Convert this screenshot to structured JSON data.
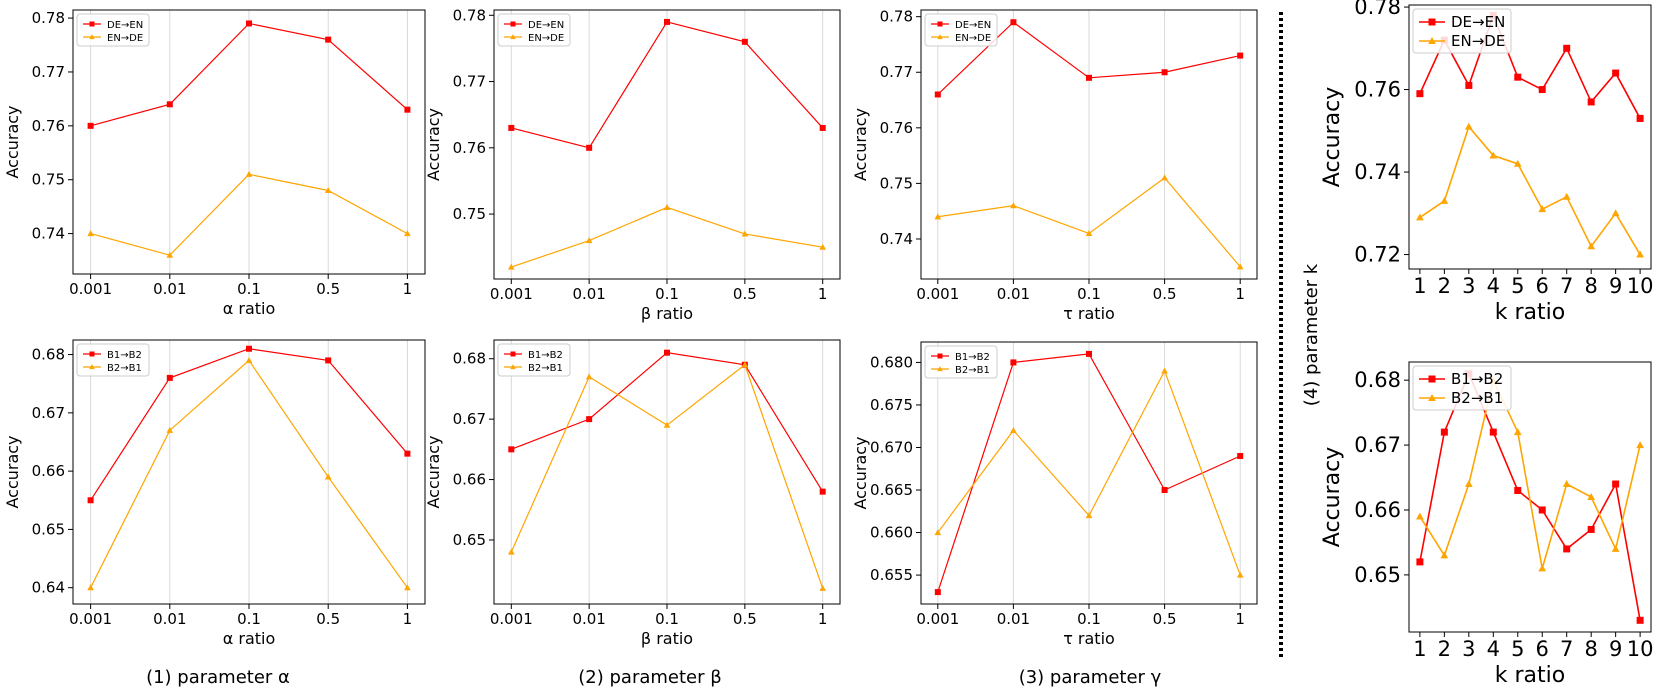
{
  "captions": [
    "(1) parameter α",
    "(2) parameter β",
    "(3) parameter γ",
    "(4) parameter k"
  ],
  "colors": {
    "red": "#ff0000",
    "orange": "#ffa500"
  },
  "chart_data": [
    {
      "id": "alpha-top",
      "type": "line",
      "categories": [
        "0.001",
        "0.01",
        "0.1",
        "0.5",
        "1"
      ],
      "xlabel": "α ratio",
      "ylabel": "Accuracy",
      "ylim": [
        0.7325,
        0.7815
      ],
      "yticks": [
        0.74,
        0.75,
        0.76,
        0.77,
        0.78
      ],
      "ytick_labels": [
        "0.74",
        "0.75",
        "0.76",
        "0.77",
        "0.78"
      ],
      "grid": "x",
      "legend": "top-left",
      "series": [
        {
          "name": "DE→EN",
          "color": "red",
          "marker": "square",
          "values": [
            0.76,
            0.764,
            0.779,
            0.776,
            0.763
          ]
        },
        {
          "name": "EN→DE",
          "color": "orange",
          "marker": "triangle",
          "values": [
            0.74,
            0.736,
            0.751,
            0.748,
            0.74
          ]
        }
      ]
    },
    {
      "id": "beta-top",
      "type": "line",
      "categories": [
        "0.001",
        "0.01",
        "0.1",
        "0.5",
        "1"
      ],
      "xlabel": "β ratio",
      "ylabel": "Accuracy",
      "ylim": [
        0.7402,
        0.7808
      ],
      "yticks": [
        0.75,
        0.76,
        0.77,
        0.78
      ],
      "ytick_labels": [
        "0.75",
        "0.76",
        "0.77",
        "0.78"
      ],
      "grid": "x",
      "legend": "top-left",
      "series": [
        {
          "name": "DE→EN",
          "color": "red",
          "marker": "square",
          "values": [
            0.763,
            0.76,
            0.779,
            0.776,
            0.763
          ]
        },
        {
          "name": "EN→DE",
          "color": "orange",
          "marker": "triangle",
          "values": [
            0.742,
            0.746,
            0.751,
            0.747,
            0.745
          ]
        }
      ]
    },
    {
      "id": "tau-top",
      "type": "line",
      "categories": [
        "0.001",
        "0.01",
        "0.1",
        "0.5",
        "1"
      ],
      "xlabel": "τ ratio",
      "ylabel": "Accuracy",
      "ylim": [
        0.7328,
        0.7812
      ],
      "yticks": [
        0.74,
        0.75,
        0.76,
        0.77,
        0.78
      ],
      "ytick_labels": [
        "0.74",
        "0.75",
        "0.76",
        "0.77",
        "0.78"
      ],
      "grid": "x",
      "legend": "top-left",
      "series": [
        {
          "name": "DE→EN",
          "color": "red",
          "marker": "square",
          "values": [
            0.766,
            0.779,
            0.769,
            0.77,
            0.773
          ]
        },
        {
          "name": "EN→DE",
          "color": "orange",
          "marker": "triangle",
          "values": [
            0.744,
            0.746,
            0.741,
            0.751,
            0.735
          ]
        }
      ]
    },
    {
      "id": "k-top",
      "type": "line",
      "categories": [
        "1",
        "2",
        "3",
        "4",
        "5",
        "6",
        "7",
        "8",
        "9",
        "10"
      ],
      "xlabel": "k ratio",
      "ylabel": "Accuracy",
      "ylim": [
        0.7165,
        0.7805
      ],
      "yticks": [
        0.72,
        0.74,
        0.76,
        0.78
      ],
      "ytick_labels": [
        "0.72",
        "0.74",
        "0.76",
        "0.78"
      ],
      "grid": "none",
      "legend": "top-left",
      "big": true,
      "series": [
        {
          "name": "DE→EN",
          "color": "red",
          "marker": "square",
          "values": [
            0.759,
            0.772,
            0.761,
            0.778,
            0.763,
            0.76,
            0.77,
            0.757,
            0.764,
            0.753
          ]
        },
        {
          "name": "EN→DE",
          "color": "orange",
          "marker": "triangle",
          "values": [
            0.729,
            0.733,
            0.751,
            0.744,
            0.742,
            0.731,
            0.734,
            0.722,
            0.73,
            0.72
          ]
        }
      ]
    },
    {
      "id": "alpha-bottom",
      "type": "line",
      "categories": [
        "0.001",
        "0.01",
        "0.1",
        "0.5",
        "1"
      ],
      "xlabel": "α ratio",
      "ylabel": "Accuracy",
      "ylim": [
        0.6372,
        0.6825
      ],
      "yticks": [
        0.64,
        0.65,
        0.66,
        0.67,
        0.68
      ],
      "ytick_labels": [
        "0.64",
        "0.65",
        "0.66",
        "0.67",
        "0.68"
      ],
      "grid": "x",
      "legend": "top-left",
      "series": [
        {
          "name": "B1→B2",
          "color": "red",
          "marker": "square",
          "values": [
            0.655,
            0.676,
            0.681,
            0.679,
            0.663
          ]
        },
        {
          "name": "B2→B1",
          "color": "orange",
          "marker": "triangle",
          "values": [
            0.64,
            0.667,
            0.679,
            0.659,
            0.64
          ]
        }
      ]
    },
    {
      "id": "beta-bottom",
      "type": "line",
      "categories": [
        "0.001",
        "0.01",
        "0.1",
        "0.5",
        "1"
      ],
      "xlabel": "β ratio",
      "ylabel": "Accuracy",
      "ylim": [
        0.6394,
        0.6831
      ],
      "yticks": [
        0.65,
        0.66,
        0.67,
        0.68
      ],
      "ytick_labels": [
        "0.65",
        "0.66",
        "0.67",
        "0.68"
      ],
      "grid": "x",
      "legend": "top-left",
      "series": [
        {
          "name": "B1→B2",
          "color": "red",
          "marker": "square",
          "values": [
            0.665,
            0.67,
            0.681,
            0.679,
            0.658
          ]
        },
        {
          "name": "B2→B1",
          "color": "orange",
          "marker": "triangle",
          "values": [
            0.648,
            0.677,
            0.669,
            0.679,
            0.642
          ]
        }
      ]
    },
    {
      "id": "tau-bottom",
      "type": "line",
      "categories": [
        "0.001",
        "0.01",
        "0.1",
        "0.5",
        "1"
      ],
      "xlabel": "τ ratio",
      "ylabel": "Accuracy",
      "ylim": [
        0.6516,
        0.6824
      ],
      "yticks": [
        0.655,
        0.66,
        0.665,
        0.67,
        0.675,
        0.68
      ],
      "ytick_labels": [
        "0.655",
        "0.660",
        "0.665",
        "0.670",
        "0.675",
        "0.680"
      ],
      "grid": "x",
      "legend": "top-left",
      "series": [
        {
          "name": "B1→B2",
          "color": "red",
          "marker": "square",
          "values": [
            0.653,
            0.68,
            0.681,
            0.665,
            0.669
          ]
        },
        {
          "name": "B2→B1",
          "color": "orange",
          "marker": "triangle",
          "values": [
            0.66,
            0.672,
            0.662,
            0.679,
            0.655
          ]
        }
      ]
    },
    {
      "id": "k-bottom",
      "type": "line",
      "categories": [
        "1",
        "2",
        "3",
        "4",
        "5",
        "6",
        "7",
        "8",
        "9",
        "10"
      ],
      "xlabel": "k ratio",
      "ylabel": "Accuracy",
      "ylim": [
        0.6412,
        0.6828
      ],
      "yticks": [
        0.65,
        0.66,
        0.67,
        0.68
      ],
      "ytick_labels": [
        "0.65",
        "0.66",
        "0.67",
        "0.68"
      ],
      "grid": "none",
      "legend": "top-left",
      "big": true,
      "series": [
        {
          "name": "B1→B2",
          "color": "red",
          "marker": "square",
          "values": [
            0.652,
            0.672,
            0.681,
            0.672,
            0.663,
            0.66,
            0.654,
            0.657,
            0.664,
            0.643
          ]
        },
        {
          "name": "B2→B1",
          "color": "orange",
          "marker": "triangle",
          "values": [
            0.659,
            0.653,
            0.664,
            0.68,
            0.672,
            0.651,
            0.664,
            0.662,
            0.654,
            0.67
          ]
        }
      ]
    }
  ]
}
